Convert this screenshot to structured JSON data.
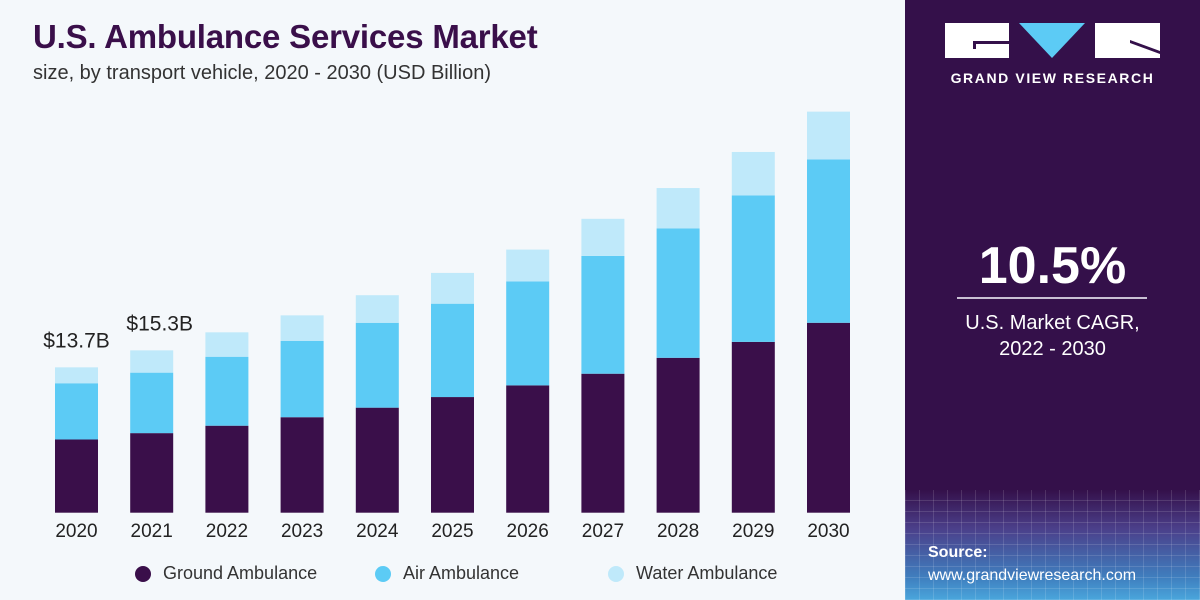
{
  "header": {
    "title": "U.S. Ambulance Services Market",
    "subtitle": "size, by transport vehicle, 2020 - 2030 (USD Billion)"
  },
  "colors": {
    "ground": "#3a0f4a",
    "air": "#5ccbf5",
    "water": "#bfe9fa",
    "panel": "#34104a",
    "background": "#f4f8fb"
  },
  "chart_data": {
    "type": "bar",
    "stacked": true,
    "title": "U.S. Ambulance Services Market",
    "subtitle": "size, by transport vehicle, 2020 - 2030 (USD Billion)",
    "xlabel": "",
    "ylabel": "",
    "grid": false,
    "legend_placement": "bottom",
    "ylim": [
      0,
      40
    ],
    "categories": [
      "2020",
      "2021",
      "2022",
      "2023",
      "2024",
      "2025",
      "2026",
      "2027",
      "2028",
      "2029",
      "2030"
    ],
    "series": [
      {
        "name": "Ground Ambulance",
        "values": [
          6.9,
          7.5,
          8.2,
          9.0,
          9.9,
          10.9,
          12.0,
          13.1,
          14.6,
          16.1,
          17.9
        ]
      },
      {
        "name": "Air Ambulance",
        "values": [
          5.3,
          5.7,
          6.5,
          7.2,
          8.0,
          8.8,
          9.8,
          11.1,
          12.2,
          13.8,
          15.4
        ]
      },
      {
        "name": "Water Ambulance",
        "values": [
          1.5,
          2.1,
          2.3,
          2.4,
          2.6,
          2.9,
          3.0,
          3.5,
          3.8,
          4.1,
          4.5
        ]
      }
    ],
    "data_labels": [
      {
        "category": "2020",
        "text": "$13.7B"
      },
      {
        "category": "2021",
        "text": "$15.3B"
      }
    ]
  },
  "panel": {
    "brand": "GRAND VIEW RESEARCH",
    "cagr_value": "10.5%",
    "cagr_label_line1": "U.S. Market CAGR,",
    "cagr_label_line2": "2022 - 2030",
    "source_label": "Source:",
    "source_url": "www.grandviewresearch.com"
  }
}
